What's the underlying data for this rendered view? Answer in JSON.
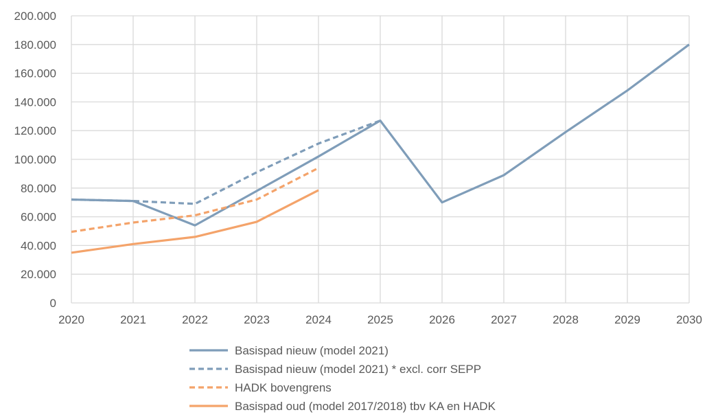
{
  "chart_data": {
    "type": "line",
    "title": "",
    "xlabel": "",
    "ylabel": "",
    "x": [
      "2020",
      "2021",
      "2022",
      "2023",
      "2024",
      "2025",
      "2026",
      "2027",
      "2028",
      "2029",
      "2030"
    ],
    "ylim": [
      0,
      200000
    ],
    "y_ticks": [
      0,
      20000,
      40000,
      60000,
      80000,
      100000,
      120000,
      140000,
      160000,
      180000,
      200000
    ],
    "y_tick_labels": [
      "0",
      "20.000",
      "40.000",
      "60.000",
      "80.000",
      "100.000",
      "120.000",
      "140.000",
      "160.000",
      "180.000",
      "200.000"
    ],
    "grid": true,
    "legend_position": "bottom",
    "series": [
      {
        "name": "Basispad nieuw (model 2021)",
        "color": "#7F9DB9",
        "dash": "solid",
        "x": [
          "2020",
          "2021",
          "2022",
          "2023",
          "2024",
          "2025",
          "2026",
          "2027",
          "2028",
          "2029",
          "2030"
        ],
        "values": [
          72000,
          71000,
          54000,
          78000,
          102000,
          127000,
          70000,
          89000,
          119000,
          148000,
          180000
        ]
      },
      {
        "name": "Basispad nieuw (model 2021) * excl. corr SEPP",
        "color": "#7F9DB9",
        "dash": "dashed",
        "x": [
          "2020",
          "2021",
          "2022",
          "2023",
          "2024",
          "2025"
        ],
        "values": [
          72000,
          71000,
          69000,
          91000,
          111000,
          127000
        ]
      },
      {
        "name": "HADK bovengrens",
        "color": "#F4A36A",
        "dash": "dashed",
        "x": [
          "2020",
          "2021",
          "2022",
          "2023",
          "2024"
        ],
        "values": [
          49500,
          56000,
          61000,
          72000,
          94000
        ]
      },
      {
        "name": "Basispad oud (model 2017/2018) tbv KA en HADK",
        "color": "#F4A36A",
        "dash": "solid",
        "x": [
          "2020",
          "2021",
          "2022",
          "2023",
          "2024"
        ],
        "values": [
          35000,
          41000,
          46000,
          56500,
          78500
        ]
      }
    ]
  }
}
